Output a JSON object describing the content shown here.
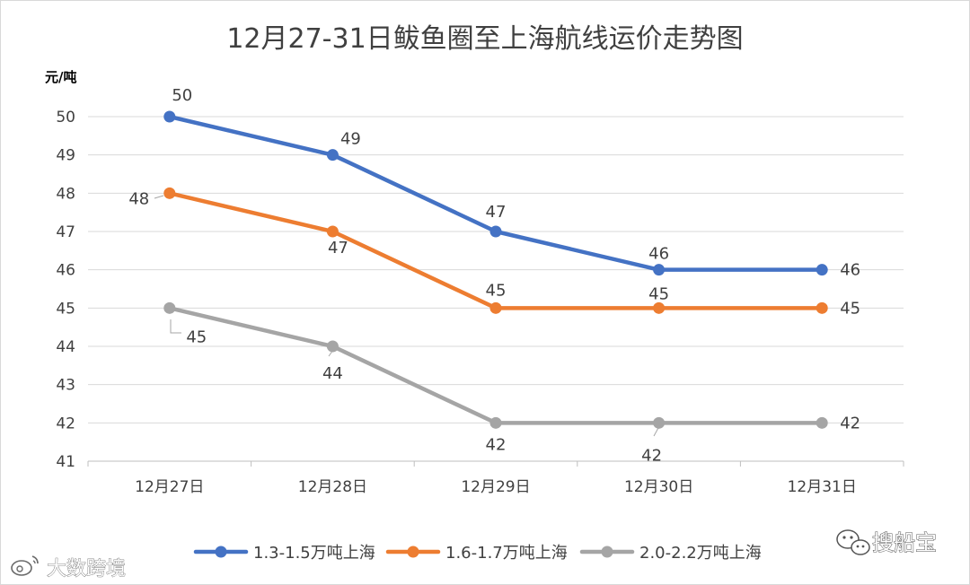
{
  "chart_data": {
    "type": "line",
    "title": "12月27-31日鲅鱼圈至上海航线运价走势图",
    "ylabel": "元/吨",
    "xlabel": "",
    "categories": [
      "12月27日",
      "12月28日",
      "12月29日",
      "12月30日",
      "12月31日"
    ],
    "ylim": [
      41,
      50
    ],
    "yticks": [
      41,
      42,
      43,
      44,
      45,
      46,
      47,
      48,
      49,
      50
    ],
    "grid": true,
    "legend_position": "bottom",
    "series": [
      {
        "name": "1.3-1.5万吨上海",
        "values": [
          50,
          49,
          47,
          46,
          46
        ],
        "color": "#4472C4"
      },
      {
        "name": "1.6-1.7万吨上海",
        "values": [
          48,
          47,
          45,
          45,
          45
        ],
        "color": "#ED7D31"
      },
      {
        "name": "2.0-2.2万吨上海",
        "values": [
          45,
          44,
          42,
          42,
          42
        ],
        "color": "#A5A5A5"
      }
    ]
  },
  "watermarks": {
    "left": "大数跨境",
    "right": "搜船宝"
  },
  "icons": {
    "left_logo": "weibo-logo-icon",
    "right_logo": "wechat-logo-icon"
  }
}
